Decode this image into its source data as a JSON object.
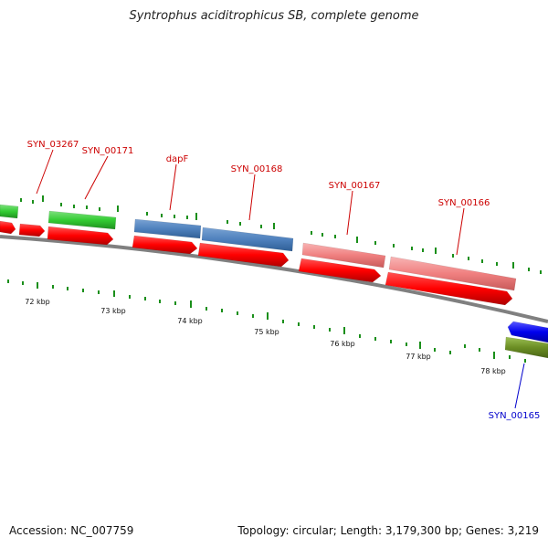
{
  "title": "Syntrophus aciditrophicus SB, complete genome",
  "footer": {
    "accession": "Accession: NC_007759",
    "summary": "Topology: circular; Length: 3,179,300 bp; Genes: 3,219"
  },
  "colors": {
    "cds": "#ff0000",
    "gene_green": "#33cc33",
    "gene_steelblue": "#4f81bd",
    "gene_pink": "#f08080",
    "gene_blue": "#0000ee",
    "gene_olive": "#6b8e23",
    "label_red": "#cc0000",
    "label_blue": "#0000cc",
    "tick": "#1a8f1a",
    "backbone": "#808080"
  },
  "scale_labels": [
    "72 kbp",
    "73 kbp",
    "74 kbp",
    "75 kbp",
    "76 kbp",
    "77 kbp",
    "78 kbp"
  ],
  "gene_labels": [
    {
      "text": "SYN_03267",
      "color": "red"
    },
    {
      "text": "SYN_00171",
      "color": "red"
    },
    {
      "text": "dapF",
      "color": "red"
    },
    {
      "text": "SYN_00168",
      "color": "red"
    },
    {
      "text": "SYN_00167",
      "color": "red"
    },
    {
      "text": "SYN_00166",
      "color": "red"
    },
    {
      "text": "SYN_00165",
      "color": "blue"
    }
  ]
}
